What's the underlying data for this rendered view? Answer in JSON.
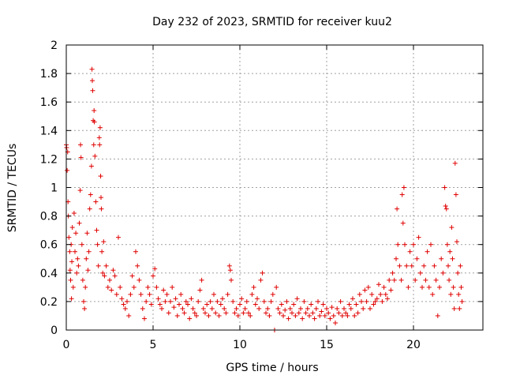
{
  "chart_data": {
    "type": "scatter",
    "title": "Day 232 of 2023, SRMTID for receiver kuu2",
    "xlabel": "GPS time / hours",
    "ylabel": "SRMTID / TECUs",
    "xlim": [
      0,
      24
    ],
    "ylim": [
      0,
      2
    ],
    "xticks": [
      0,
      5,
      10,
      15,
      20
    ],
    "xtick_labels": [
      "0",
      "5",
      "10",
      "15",
      "20"
    ],
    "yticks": [
      0,
      0.2,
      0.4,
      0.6,
      0.8,
      1,
      1.2,
      1.4,
      1.6,
      1.8,
      2
    ],
    "ytick_labels": [
      "0",
      "0.2",
      "0.4",
      "0.6",
      "0.8",
      "1",
      "1.2",
      "1.4",
      "1.6",
      "1.8",
      "2"
    ],
    "grid": true,
    "marker": "+",
    "marker_color": "#e00000",
    "series": [
      {
        "name": "SRMTID",
        "points": [
          [
            0.0,
            1.3
          ],
          [
            0.02,
            1.28
          ],
          [
            0.05,
            1.12
          ],
          [
            0.08,
            1.25
          ],
          [
            0.1,
            0.9
          ],
          [
            0.12,
            0.8
          ],
          [
            0.15,
            0.65
          ],
          [
            0.2,
            0.55
          ],
          [
            0.22,
            0.42
          ],
          [
            0.25,
            0.35
          ],
          [
            0.28,
            0.6
          ],
          [
            0.3,
            0.22
          ],
          [
            0.32,
            0.48
          ],
          [
            0.35,
            0.72
          ],
          [
            0.4,
            0.3
          ],
          [
            0.45,
            0.82
          ],
          [
            0.5,
            0.55
          ],
          [
            0.55,
            0.68
          ],
          [
            0.6,
            0.4
          ],
          [
            0.65,
            0.5
          ],
          [
            0.7,
            0.45
          ],
          [
            0.75,
            0.75
          ],
          [
            0.8,
            0.98
          ],
          [
            0.82,
            1.3
          ],
          [
            0.85,
            1.21
          ],
          [
            0.9,
            0.6
          ],
          [
            0.95,
            0.35
          ],
          [
            1.0,
            0.2
          ],
          [
            1.05,
            0.15
          ],
          [
            1.1,
            0.3
          ],
          [
            1.15,
            0.5
          ],
          [
            1.2,
            0.68
          ],
          [
            1.25,
            0.42
          ],
          [
            1.3,
            0.55
          ],
          [
            1.35,
            0.85
          ],
          [
            1.4,
            0.95
          ],
          [
            1.45,
            1.15
          ],
          [
            1.48,
            1.83
          ],
          [
            1.5,
            1.75
          ],
          [
            1.52,
            1.68
          ],
          [
            1.55,
            1.47
          ],
          [
            1.58,
            1.3
          ],
          [
            1.6,
            1.54
          ],
          [
            1.62,
            1.46
          ],
          [
            1.65,
            1.22
          ],
          [
            1.7,
            0.9
          ],
          [
            1.75,
            0.7
          ],
          [
            1.8,
            0.6
          ],
          [
            1.85,
            0.45
          ],
          [
            1.9,
            1.35
          ],
          [
            1.92,
            1.3
          ],
          [
            1.95,
            1.42
          ],
          [
            1.98,
            1.08
          ],
          [
            2.0,
            0.93
          ],
          [
            2.02,
            0.85
          ],
          [
            2.05,
            0.55
          ],
          [
            2.1,
            0.4
          ],
          [
            2.15,
            0.62
          ],
          [
            2.2,
            0.38
          ],
          [
            2.3,
            0.45
          ],
          [
            2.4,
            0.3
          ],
          [
            2.5,
            0.35
          ],
          [
            2.6,
            0.28
          ],
          [
            2.7,
            0.42
          ],
          [
            2.8,
            0.38
          ],
          [
            2.9,
            0.25
          ],
          [
            3.0,
            0.65
          ],
          [
            3.1,
            0.3
          ],
          [
            3.2,
            0.22
          ],
          [
            3.3,
            0.18
          ],
          [
            3.4,
            0.15
          ],
          [
            3.5,
            0.2
          ],
          [
            3.6,
            0.1
          ],
          [
            3.7,
            0.25
          ],
          [
            3.8,
            0.38
          ],
          [
            3.9,
            0.3
          ],
          [
            4.0,
            0.55
          ],
          [
            4.1,
            0.45
          ],
          [
            4.2,
            0.35
          ],
          [
            4.3,
            0.25
          ],
          [
            4.4,
            0.15
          ],
          [
            4.5,
            0.08
          ],
          [
            4.6,
            0.2
          ],
          [
            4.7,
            0.3
          ],
          [
            4.8,
            0.25
          ],
          [
            4.9,
            0.18
          ],
          [
            5.0,
            0.38
          ],
          [
            5.1,
            0.43
          ],
          [
            5.2,
            0.3
          ],
          [
            5.3,
            0.22
          ],
          [
            5.4,
            0.18
          ],
          [
            5.5,
            0.15
          ],
          [
            5.6,
            0.28
          ],
          [
            5.7,
            0.2
          ],
          [
            5.8,
            0.25
          ],
          [
            5.9,
            0.12
          ],
          [
            6.0,
            0.2
          ],
          [
            6.1,
            0.3
          ],
          [
            6.2,
            0.16
          ],
          [
            6.3,
            0.22
          ],
          [
            6.4,
            0.1
          ],
          [
            6.5,
            0.18
          ],
          [
            6.6,
            0.25
          ],
          [
            6.7,
            0.15
          ],
          [
            6.8,
            0.12
          ],
          [
            6.9,
            0.2
          ],
          [
            7.0,
            0.18
          ],
          [
            7.1,
            0.08
          ],
          [
            7.2,
            0.22
          ],
          [
            7.3,
            0.15
          ],
          [
            7.4,
            0.12
          ],
          [
            7.5,
            0.1
          ],
          [
            7.6,
            0.2
          ],
          [
            7.7,
            0.28
          ],
          [
            7.8,
            0.35
          ],
          [
            7.9,
            0.15
          ],
          [
            8.0,
            0.12
          ],
          [
            8.1,
            0.18
          ],
          [
            8.2,
            0.1
          ],
          [
            8.3,
            0.2
          ],
          [
            8.4,
            0.15
          ],
          [
            8.5,
            0.25
          ],
          [
            8.6,
            0.12
          ],
          [
            8.7,
            0.2
          ],
          [
            8.8,
            0.1
          ],
          [
            8.9,
            0.18
          ],
          [
            9.0,
            0.22
          ],
          [
            9.1,
            0.15
          ],
          [
            9.2,
            0.12
          ],
          [
            9.3,
            0.25
          ],
          [
            9.4,
            0.45
          ],
          [
            9.45,
            0.42
          ],
          [
            9.5,
            0.35
          ],
          [
            9.6,
            0.2
          ],
          [
            9.7,
            0.12
          ],
          [
            9.8,
            0.15
          ],
          [
            9.9,
            0.1
          ],
          [
            10.0,
            0.18
          ],
          [
            10.1,
            0.22
          ],
          [
            10.2,
            0.12
          ],
          [
            10.3,
            0.15
          ],
          [
            10.4,
            0.2
          ],
          [
            10.5,
            0.12
          ],
          [
            10.6,
            0.1
          ],
          [
            10.7,
            0.25
          ],
          [
            10.8,
            0.3
          ],
          [
            10.9,
            0.18
          ],
          [
            11.0,
            0.22
          ],
          [
            11.1,
            0.15
          ],
          [
            11.2,
            0.35
          ],
          [
            11.3,
            0.4
          ],
          [
            11.4,
            0.2
          ],
          [
            11.5,
            0.12
          ],
          [
            11.6,
            0.15
          ],
          [
            11.7,
            0.1
          ],
          [
            11.8,
            0.2
          ],
          [
            11.9,
            0.25
          ],
          [
            12.0,
            0.0
          ],
          [
            12.1,
            0.3
          ],
          [
            12.2,
            0.15
          ],
          [
            12.3,
            0.12
          ],
          [
            12.4,
            0.18
          ],
          [
            12.5,
            0.1
          ],
          [
            12.6,
            0.14
          ],
          [
            12.7,
            0.2
          ],
          [
            12.8,
            0.08
          ],
          [
            12.9,
            0.15
          ],
          [
            13.0,
            0.12
          ],
          [
            13.1,
            0.18
          ],
          [
            13.2,
            0.1
          ],
          [
            13.3,
            0.22
          ],
          [
            13.4,
            0.12
          ],
          [
            13.5,
            0.15
          ],
          [
            13.6,
            0.08
          ],
          [
            13.7,
            0.2
          ],
          [
            13.8,
            0.12
          ],
          [
            13.9,
            0.15
          ],
          [
            14.0,
            0.1
          ],
          [
            14.1,
            0.18
          ],
          [
            14.2,
            0.12
          ],
          [
            14.3,
            0.08
          ],
          [
            14.4,
            0.15
          ],
          [
            14.5,
            0.2
          ],
          [
            14.6,
            0.1
          ],
          [
            14.7,
            0.13
          ],
          [
            14.8,
            0.18
          ],
          [
            14.9,
            0.1
          ],
          [
            15.0,
            0.15
          ],
          [
            15.1,
            0.12
          ],
          [
            15.2,
            0.08
          ],
          [
            15.3,
            0.16
          ],
          [
            15.4,
            0.1
          ],
          [
            15.5,
            0.05
          ],
          [
            15.6,
            0.15
          ],
          [
            15.7,
            0.12
          ],
          [
            15.8,
            0.2
          ],
          [
            15.9,
            0.1
          ],
          [
            16.0,
            0.15
          ],
          [
            16.1,
            0.12
          ],
          [
            16.2,
            0.1
          ],
          [
            16.3,
            0.18
          ],
          [
            16.4,
            0.15
          ],
          [
            16.5,
            0.22
          ],
          [
            16.6,
            0.1
          ],
          [
            16.7,
            0.18
          ],
          [
            16.8,
            0.12
          ],
          [
            16.9,
            0.25
          ],
          [
            17.0,
            0.2
          ],
          [
            17.1,
            0.15
          ],
          [
            17.2,
            0.28
          ],
          [
            17.3,
            0.2
          ],
          [
            17.4,
            0.3
          ],
          [
            17.5,
            0.15
          ],
          [
            17.6,
            0.25
          ],
          [
            17.7,
            0.18
          ],
          [
            17.8,
            0.2
          ],
          [
            17.9,
            0.22
          ],
          [
            18.0,
            0.32
          ],
          [
            18.1,
            0.25
          ],
          [
            18.2,
            0.2
          ],
          [
            18.3,
            0.3
          ],
          [
            18.4,
            0.25
          ],
          [
            18.5,
            0.22
          ],
          [
            18.6,
            0.35
          ],
          [
            18.7,
            0.28
          ],
          [
            18.8,
            0.4
          ],
          [
            18.9,
            0.35
          ],
          [
            19.0,
            0.5
          ],
          [
            19.05,
            0.85
          ],
          [
            19.1,
            0.6
          ],
          [
            19.2,
            0.45
          ],
          [
            19.3,
            0.35
          ],
          [
            19.35,
            0.95
          ],
          [
            19.4,
            0.75
          ],
          [
            19.45,
            1.0
          ],
          [
            19.5,
            0.6
          ],
          [
            19.6,
            0.45
          ],
          [
            19.7,
            0.3
          ],
          [
            19.8,
            0.55
          ],
          [
            19.9,
            0.45
          ],
          [
            20.0,
            0.6
          ],
          [
            20.1,
            0.35
          ],
          [
            20.2,
            0.5
          ],
          [
            20.3,
            0.65
          ],
          [
            20.4,
            0.4
          ],
          [
            20.5,
            0.3
          ],
          [
            20.6,
            0.45
          ],
          [
            20.7,
            0.35
          ],
          [
            20.8,
            0.55
          ],
          [
            20.9,
            0.3
          ],
          [
            21.0,
            0.6
          ],
          [
            21.1,
            0.25
          ],
          [
            21.2,
            0.45
          ],
          [
            21.3,
            0.35
          ],
          [
            21.4,
            0.1
          ],
          [
            21.5,
            0.3
          ],
          [
            21.6,
            0.5
          ],
          [
            21.7,
            0.4
          ],
          [
            21.8,
            1.0
          ],
          [
            21.85,
            0.87
          ],
          [
            21.9,
            0.85
          ],
          [
            21.95,
            0.6
          ],
          [
            22.0,
            0.45
          ],
          [
            22.05,
            0.35
          ],
          [
            22.1,
            0.55
          ],
          [
            22.15,
            0.25
          ],
          [
            22.2,
            0.72
          ],
          [
            22.25,
            0.5
          ],
          [
            22.3,
            0.3
          ],
          [
            22.35,
            0.15
          ],
          [
            22.4,
            1.17
          ],
          [
            22.45,
            0.95
          ],
          [
            22.5,
            0.62
          ],
          [
            22.55,
            0.4
          ],
          [
            22.6,
            0.25
          ],
          [
            22.65,
            0.15
          ],
          [
            22.7,
            0.45
          ],
          [
            22.75,
            0.3
          ],
          [
            22.8,
            0.2
          ]
        ]
      }
    ]
  }
}
